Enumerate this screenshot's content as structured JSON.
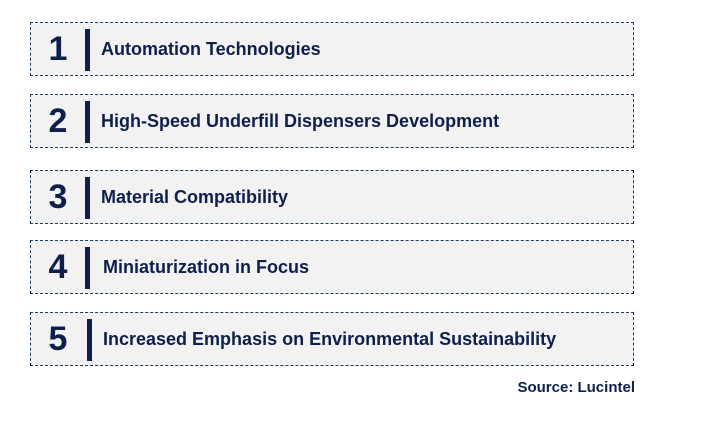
{
  "items": [
    {
      "number": "1",
      "label": "Automation Technologies"
    },
    {
      "number": "2",
      "label": "High-Speed Underfill Dispensers Development"
    },
    {
      "number": "3",
      "label": "Material Compatibility"
    },
    {
      "number": "4",
      "label": "Miniaturization in Focus"
    },
    {
      "number": "5",
      "label": "Increased Emphasis on Environmental Sustainability"
    }
  ],
  "source": "Source: Lucintel",
  "colors": {
    "text": "#0d1f4a",
    "box_background": "#f2f2f2",
    "box_border": "#1f3864"
  }
}
